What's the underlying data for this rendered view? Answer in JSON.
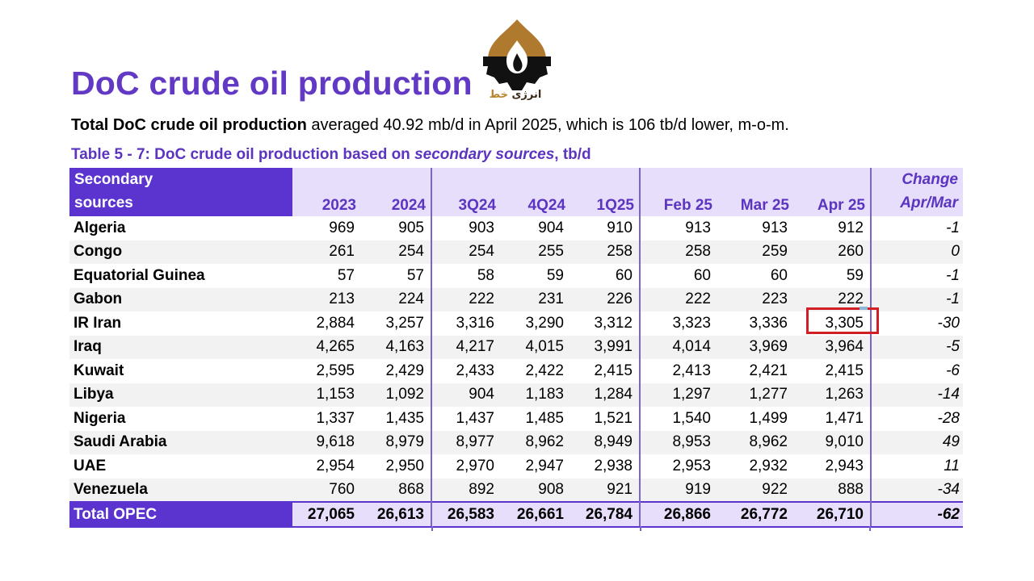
{
  "title": "DoC crude oil production",
  "logo": {
    "text_main": "انرژی",
    "text_accent": "خط"
  },
  "summary": {
    "bold": "Total DoC crude oil production",
    "rest": " averaged 40.92 mb/d in April 2025, which is 106 tb/d lower, m-o-m."
  },
  "caption": {
    "prefix": "Table 5 - 7: DoC crude oil production based on ",
    "italic": "secondary sources",
    "suffix": ", tb/d"
  },
  "table": {
    "header": {
      "first_line1": "Secondary",
      "first_line2": "sources",
      "columns": [
        "2023",
        "2024",
        "3Q24",
        "4Q24",
        "1Q25",
        "Feb 25",
        "Mar 25",
        "Apr 25"
      ],
      "change_line1": "Change",
      "change_line2": "Apr/Mar"
    },
    "rows": [
      {
        "name": "Algeria",
        "values": [
          "969",
          "905",
          "903",
          "904",
          "910",
          "913",
          "913",
          "912"
        ],
        "change": "-1"
      },
      {
        "name": "Congo",
        "values": [
          "261",
          "254",
          "254",
          "255",
          "258",
          "258",
          "259",
          "260"
        ],
        "change": "0"
      },
      {
        "name": "Equatorial Guinea",
        "values": [
          "57",
          "57",
          "58",
          "59",
          "60",
          "60",
          "60",
          "59"
        ],
        "change": "-1"
      },
      {
        "name": "Gabon",
        "values": [
          "213",
          "224",
          "222",
          "231",
          "226",
          "222",
          "223",
          "222"
        ],
        "change": "-1"
      },
      {
        "name": "IR Iran",
        "values": [
          "2,884",
          "3,257",
          "3,316",
          "3,290",
          "3,312",
          "3,323",
          "3,336",
          "3,305"
        ],
        "change": "-30"
      },
      {
        "name": "Iraq",
        "values": [
          "4,265",
          "4,163",
          "4,217",
          "4,015",
          "3,991",
          "4,014",
          "3,969",
          "3,964"
        ],
        "change": "-5"
      },
      {
        "name": "Kuwait",
        "values": [
          "2,595",
          "2,429",
          "2,433",
          "2,422",
          "2,415",
          "2,413",
          "2,421",
          "2,415"
        ],
        "change": "-6"
      },
      {
        "name": "Libya",
        "values": [
          "1,153",
          "1,092",
          "904",
          "1,183",
          "1,284",
          "1,297",
          "1,277",
          "1,263"
        ],
        "change": "-14"
      },
      {
        "name": "Nigeria",
        "values": [
          "1,337",
          "1,435",
          "1,437",
          "1,485",
          "1,521",
          "1,540",
          "1,499",
          "1,471"
        ],
        "change": "-28"
      },
      {
        "name": "Saudi Arabia",
        "values": [
          "9,618",
          "8,979",
          "8,977",
          "8,962",
          "8,949",
          "8,953",
          "8,962",
          "9,010"
        ],
        "change": "49"
      },
      {
        "name": "UAE",
        "values": [
          "2,954",
          "2,950",
          "2,970",
          "2,947",
          "2,938",
          "2,953",
          "2,932",
          "2,943"
        ],
        "change": "11"
      },
      {
        "name": "Venezuela",
        "values": [
          "760",
          "868",
          "892",
          "908",
          "921",
          "919",
          "922",
          "888"
        ],
        "change": "-34"
      }
    ],
    "total": {
      "name": "Total  OPEC",
      "values": [
        "27,065",
        "26,613",
        "26,583",
        "26,661",
        "26,784",
        "26,866",
        "26,772",
        "26,710"
      ],
      "change": "-62"
    }
  },
  "colors": {
    "accent": "#6239c4",
    "header_fill": "#5b33cf",
    "header_light": "#e6defa",
    "highlight": "#d21f26"
  },
  "icons": {
    "logo": "oil-flame-gear-icon"
  }
}
